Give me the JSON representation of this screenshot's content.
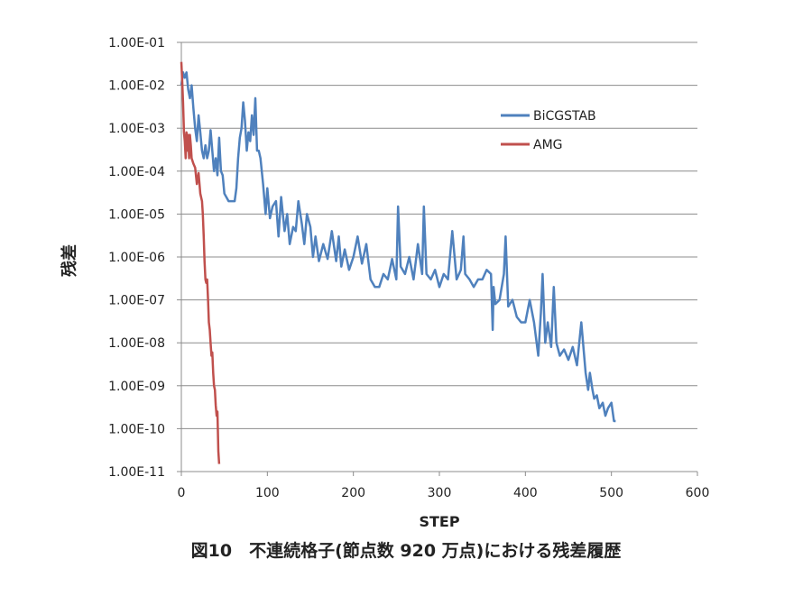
{
  "caption": "図10　不連続格子(節点数 920 万点)における残差履歴",
  "chart_data": {
    "type": "line",
    "xlabel": "STEP",
    "ylabel": "残差",
    "xlim": [
      0,
      600
    ],
    "xticks": [
      "0",
      "100",
      "200",
      "300",
      "400",
      "500",
      "600"
    ],
    "yscale": "log",
    "ylim": [
      1e-11,
      0.1
    ],
    "yticks": [
      "1.00E-01",
      "1.00E-02",
      "1.00E-03",
      "1.00E-04",
      "1.00E-05",
      "1.00E-06",
      "1.00E-07",
      "1.00E-08",
      "1.00E-09",
      "1.00E-10",
      "1.00E-11"
    ],
    "grid": "horizontal",
    "legend_position": "right",
    "series": [
      {
        "name": "BiCGSTAB",
        "color": "#4f81bd",
        "x": [
          0,
          2,
          4,
          6,
          8,
          10,
          12,
          14,
          16,
          18,
          20,
          22,
          24,
          26,
          28,
          30,
          32,
          34,
          36,
          38,
          40,
          42,
          44,
          46,
          48,
          50,
          55,
          60,
          62,
          64,
          66,
          68,
          70,
          72,
          74,
          76,
          78,
          80,
          82,
          84,
          86,
          88,
          90,
          92,
          95,
          98,
          100,
          103,
          106,
          110,
          113,
          116,
          120,
          123,
          126,
          130,
          133,
          136,
          140,
          143,
          146,
          150,
          153,
          156,
          160,
          165,
          170,
          175,
          180,
          183,
          186,
          190,
          195,
          200,
          205,
          210,
          215,
          220,
          225,
          230,
          235,
          240,
          245,
          250,
          252,
          255,
          260,
          265,
          270,
          275,
          280,
          282,
          285,
          290,
          295,
          300,
          305,
          310,
          315,
          320,
          325,
          328,
          330,
          335,
          340,
          345,
          350,
          355,
          360,
          362,
          363,
          365,
          370,
          375,
          377,
          380,
          385,
          390,
          395,
          400,
          405,
          410,
          415,
          418,
          420,
          423,
          426,
          430,
          433,
          436,
          440,
          445,
          450,
          455,
          460,
          465,
          470,
          473,
          475,
          478,
          480,
          483,
          486,
          490,
          493,
          496,
          500,
          503,
          505
        ],
        "y": [
          0.01,
          0.02,
          0.015,
          0.02,
          0.008,
          0.005,
          0.01,
          0.003,
          0.001,
          0.0005,
          0.002,
          0.0008,
          0.0003,
          0.0002,
          0.0004,
          0.0002,
          0.0003,
          0.0009,
          0.0003,
          0.0001,
          0.0002,
          8e-05,
          0.0006,
          0.0001,
          8e-05,
          3e-05,
          2e-05,
          2e-05,
          2e-05,
          4e-05,
          0.0002,
          0.0006,
          0.001,
          0.004,
          0.0015,
          0.0003,
          0.0008,
          0.0005,
          0.002,
          0.0007,
          0.005,
          0.0003,
          0.0003,
          0.0002,
          5e-05,
          1e-05,
          4e-05,
          8e-06,
          1.5e-05,
          2e-05,
          3e-06,
          2.5e-05,
          4e-06,
          1e-05,
          2e-06,
          5e-06,
          4e-06,
          2e-05,
          6e-06,
          2e-06,
          1e-05,
          5e-06,
          1e-06,
          3e-06,
          8e-07,
          2e-06,
          9e-07,
          4e-06,
          8e-07,
          3e-06,
          6e-07,
          1.5e-06,
          5e-07,
          1e-06,
          3e-06,
          7e-07,
          2e-06,
          3e-07,
          2e-07,
          2e-07,
          4e-07,
          3e-07,
          9e-07,
          3e-07,
          1.5e-05,
          6e-07,
          4e-07,
          1e-06,
          3e-07,
          2e-06,
          4e-07,
          1.5e-05,
          4e-07,
          3e-07,
          5e-07,
          2e-07,
          4e-07,
          3e-07,
          4e-06,
          3e-07,
          5e-07,
          3e-06,
          4e-07,
          3e-07,
          2e-07,
          3e-07,
          3e-07,
          5e-07,
          4e-07,
          2e-08,
          2e-07,
          8e-08,
          1e-07,
          4e-07,
          3e-06,
          7e-08,
          1e-07,
          4e-08,
          3e-08,
          3e-08,
          1e-07,
          3e-08,
          5e-09,
          5e-08,
          4e-07,
          1e-08,
          3e-08,
          8e-09,
          2e-07,
          1e-08,
          5e-09,
          7e-09,
          4e-09,
          8e-09,
          3e-09,
          3e-08,
          2e-09,
          8e-10,
          2e-09,
          8e-10,
          5e-10,
          6e-10,
          3e-10,
          4e-10,
          2e-10,
          3e-10,
          4e-10,
          1.5e-10,
          1.5e-10
        ]
      },
      {
        "name": "AMG",
        "color": "#c0504d",
        "x": [
          0,
          1,
          2,
          3,
          4,
          5,
          6,
          7,
          8,
          9,
          10,
          11,
          12,
          14,
          16,
          18,
          20,
          22,
          24,
          25,
          26,
          27,
          28,
          29,
          30,
          31,
          32,
          33,
          34,
          35,
          36,
          37,
          38,
          39,
          40,
          41,
          42,
          43,
          44
        ],
        "y": [
          0.035,
          0.012,
          0.004,
          0.0008,
          0.0005,
          0.0002,
          0.0008,
          0.0003,
          0.0007,
          0.0002,
          0.0007,
          0.0004,
          0.0002,
          0.00015,
          0.00012,
          5e-05,
          9e-05,
          3e-05,
          2e-05,
          1e-05,
          3e-06,
          8e-07,
          3e-07,
          2.5e-07,
          3e-07,
          1e-07,
          3e-08,
          2e-08,
          1e-08,
          5e-09,
          6e-09,
          2e-09,
          1e-09,
          8e-10,
          3.5e-10,
          2e-10,
          2.5e-10,
          3e-11,
          1.5e-11
        ]
      }
    ]
  }
}
